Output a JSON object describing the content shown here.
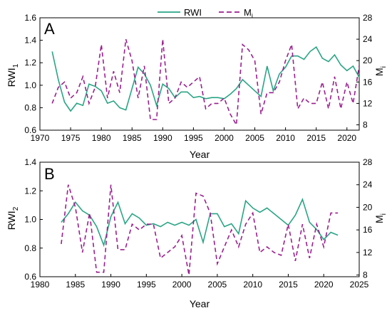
{
  "colors": {
    "rwi": "#2aa585",
    "mi": "#9b1f8f"
  },
  "legend": {
    "rwi": "RWI",
    "mi_base": "M",
    "mi_sub": "i"
  },
  "chart_data": [
    {
      "type": "line",
      "panel_label": "A",
      "xlabel": "Year",
      "ylabel_base": "RWI",
      "ylabel_sub": "1",
      "y2label_base": "M",
      "y2label_sub": "i",
      "xlim": [
        1970,
        2022
      ],
      "ylim": [
        0.6,
        1.6
      ],
      "y2lim": [
        7,
        28
      ],
      "x_ticks": [
        1970,
        1975,
        1980,
        1985,
        1990,
        1995,
        2000,
        2005,
        2010,
        2015,
        2020
      ],
      "y_ticks": [
        "0.6",
        "0.8",
        "1.0",
        "1.2",
        "1.4",
        "1.6"
      ],
      "y2_ticks": [
        "8",
        "12",
        "16",
        "20",
        "24",
        "28"
      ],
      "series": [
        {
          "name": "RWI",
          "axis": "left",
          "x": [
            1972,
            1973,
            1974,
            1975,
            1976,
            1977,
            1978,
            1979,
            1980,
            1981,
            1982,
            1983,
            1984,
            1985,
            1986,
            1987,
            1988,
            1989,
            1990,
            1991,
            1992,
            1993,
            1994,
            1995,
            1996,
            1997,
            1998,
            1999,
            2000,
            2001,
            2002,
            2003,
            2004,
            2005,
            2006,
            2007,
            2008,
            2009,
            2010,
            2011,
            2012,
            2013,
            2014,
            2015,
            2016,
            2017,
            2018,
            2019,
            2020,
            2021,
            2022
          ],
          "values": [
            1.3,
            1.05,
            0.85,
            0.77,
            0.84,
            0.82,
            1.01,
            0.99,
            0.95,
            0.84,
            0.86,
            0.8,
            0.78,
            0.97,
            1.16,
            1.1,
            1.0,
            0.82,
            1.01,
            0.97,
            0.89,
            0.94,
            0.94,
            0.89,
            0.9,
            0.88,
            0.89,
            0.89,
            0.88,
            0.92,
            0.97,
            1.05,
            1.0,
            0.95,
            0.9,
            1.17,
            0.95,
            1.1,
            1.16,
            1.26,
            1.26,
            1.23,
            1.3,
            1.34,
            1.24,
            1.21,
            1.27,
            1.18,
            1.13,
            1.17,
            1.07
          ]
        },
        {
          "name": "Mi",
          "axis": "right",
          "x": [
            1972,
            1973,
            1974,
            1975,
            1976,
            1977,
            1978,
            1979,
            1980,
            1981,
            1982,
            1983,
            1984,
            1985,
            1986,
            1987,
            1988,
            1989,
            1990,
            1991,
            1992,
            1993,
            1994,
            1995,
            1996,
            1997,
            1998,
            1999,
            2000,
            2001,
            2002,
            2003,
            2004,
            2005,
            2006,
            2007,
            2008,
            2009,
            2010,
            2011,
            2012,
            2013,
            2014,
            2015,
            2016,
            2017,
            2018,
            2019,
            2020,
            2021,
            2022
          ],
          "values": [
            12,
            15,
            16,
            13,
            14,
            17,
            12,
            15,
            23,
            13,
            18,
            14,
            24,
            20,
            13,
            19,
            9,
            9,
            24,
            12,
            13,
            16,
            15,
            16,
            17,
            11,
            12,
            12,
            13,
            10,
            8,
            23,
            22,
            20,
            10,
            14,
            14,
            16,
            20,
            23,
            11,
            13,
            12,
            12,
            16,
            11,
            17,
            11,
            16,
            12,
            19
          ]
        }
      ]
    },
    {
      "type": "line",
      "panel_label": "B",
      "xlabel": "Year",
      "ylabel_base": "RWI",
      "ylabel_sub": "2",
      "y2label_base": "M",
      "y2label_sub": "i",
      "xlim": [
        1980,
        2025
      ],
      "ylim": [
        0.6,
        1.4
      ],
      "y2lim": [
        7.7,
        28
      ],
      "x_ticks": [
        1980,
        1985,
        1990,
        1995,
        2000,
        2005,
        2010,
        2015,
        2020,
        2025
      ],
      "y_ticks": [
        "0.6",
        "0.8",
        "1.0",
        "1.2",
        "1.4"
      ],
      "y2_ticks": [
        "8",
        "12",
        "16",
        "20",
        "24",
        "28"
      ],
      "series": [
        {
          "name": "RWI",
          "axis": "left",
          "x": [
            1983,
            1984,
            1985,
            1986,
            1987,
            1988,
            1989,
            1990,
            1991,
            1992,
            1993,
            1994,
            1995,
            1996,
            1997,
            1998,
            1999,
            2000,
            2001,
            2002,
            2003,
            2004,
            2005,
            2006,
            2007,
            2008,
            2009,
            2010,
            2011,
            2012,
            2013,
            2014,
            2015,
            2016,
            2017,
            2018,
            2019,
            2020,
            2021,
            2022
          ],
          "values": [
            0.98,
            1.04,
            1.12,
            1.06,
            1.03,
            0.95,
            0.82,
            1.02,
            1.12,
            0.97,
            1.04,
            1.01,
            0.96,
            0.97,
            0.95,
            0.98,
            0.96,
            0.98,
            0.96,
            1.0,
            0.84,
            1.04,
            1.04,
            0.95,
            0.97,
            0.9,
            1.13,
            1.08,
            1.05,
            1.08,
            1.04,
            1.0,
            0.96,
            1.03,
            1.14,
            0.98,
            0.93,
            0.86,
            0.91,
            0.89
          ]
        },
        {
          "name": "Mi",
          "axis": "right",
          "x": [
            1983,
            1984,
            1985,
            1986,
            1987,
            1988,
            1989,
            1990,
            1991,
            1992,
            1993,
            1994,
            1995,
            1996,
            1997,
            1998,
            1999,
            2000,
            2001,
            2002,
            2003,
            2004,
            2005,
            2006,
            2007,
            2008,
            2009,
            2010,
            2011,
            2012,
            2013,
            2014,
            2015,
            2016,
            2017,
            2018,
            2019,
            2020,
            2021,
            2022
          ],
          "values": [
            13.5,
            24,
            20,
            12,
            19,
            8.5,
            8.5,
            24,
            12.5,
            12.5,
            17,
            16,
            17,
            17,
            11,
            12,
            13,
            15,
            8,
            22.5,
            22,
            19,
            10,
            13,
            16,
            13,
            17,
            19,
            12,
            13,
            12,
            11.5,
            17,
            10.5,
            17,
            11,
            17,
            13,
            19,
            19
          ]
        }
      ]
    }
  ]
}
